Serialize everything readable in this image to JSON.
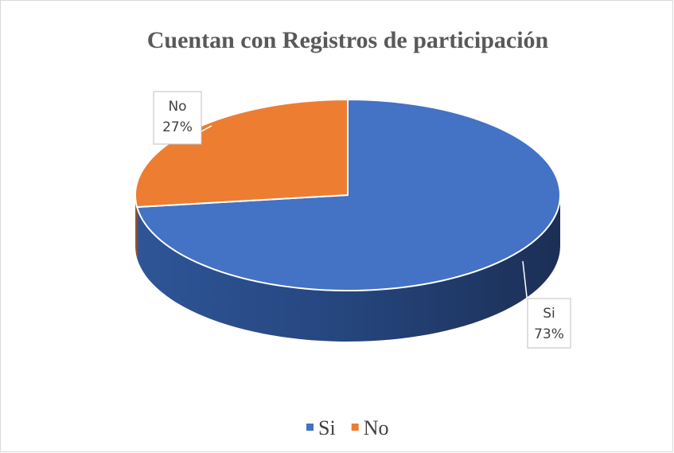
{
  "chart_data": {
    "type": "pie",
    "title": "Cuentan con Registros de participación",
    "categories": [
      "Si",
      "No"
    ],
    "values": [
      73,
      27
    ],
    "value_labels": [
      "73%",
      "27%"
    ],
    "colors": [
      "#4472c4",
      "#ed7d31"
    ],
    "legend": "bottom"
  }
}
